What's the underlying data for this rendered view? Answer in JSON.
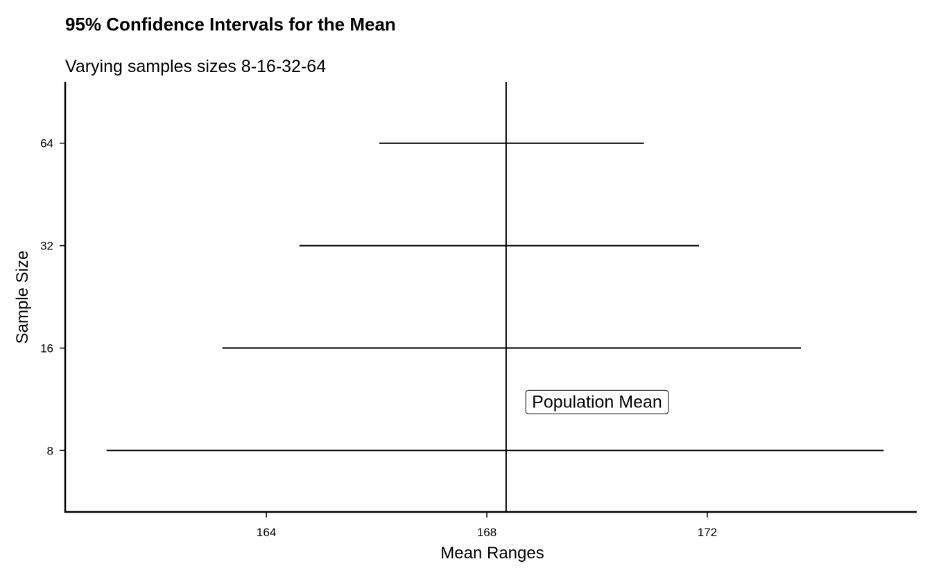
{
  "chart_data": {
    "type": "errorbar",
    "title": "95% Confidence Intervals for the Mean",
    "subtitle": "Varying samples sizes 8-16-32-64",
    "xlabel": "Mean Ranges",
    "ylabel": "Sample Size",
    "xlim": [
      160.35,
      175.8
    ],
    "x_ticks": [
      164,
      168,
      172
    ],
    "categories": [
      "8",
      "16",
      "32",
      "64"
    ],
    "intervals": [
      {
        "sample_size": "8",
        "lower": 161.1,
        "upper": 175.2
      },
      {
        "sample_size": "16",
        "lower": 163.2,
        "upper": 173.7
      },
      {
        "sample_size": "32",
        "lower": 164.6,
        "upper": 171.85
      },
      {
        "sample_size": "64",
        "lower": 166.05,
        "upper": 170.85
      }
    ],
    "population_mean": 168.35,
    "annotation": {
      "text": "Population Mean",
      "x": 170.0,
      "y_between": [
        "8",
        "16"
      ]
    },
    "grid": false,
    "legend": "none"
  }
}
